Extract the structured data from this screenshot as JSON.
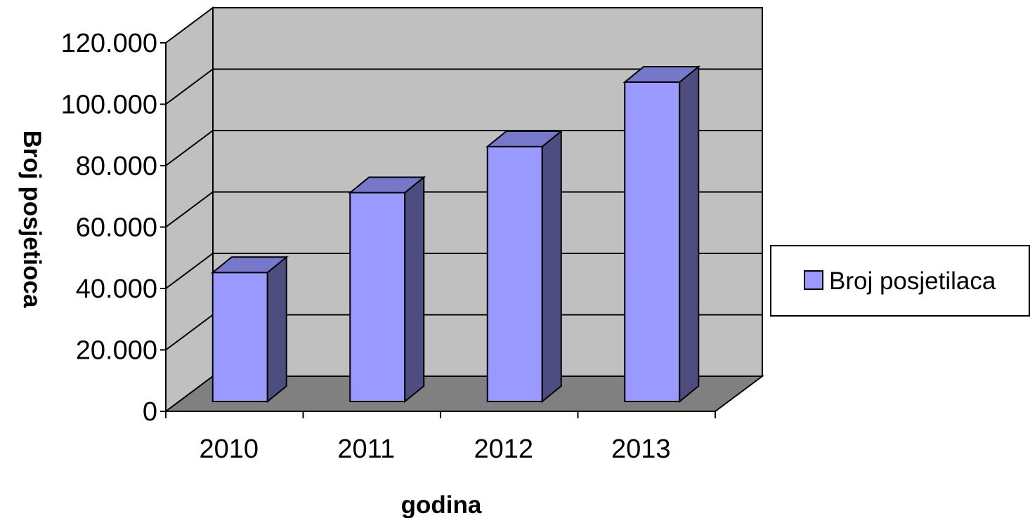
{
  "chart_data": {
    "type": "bar",
    "style": "3d-column",
    "title": "",
    "xlabel": "godina",
    "ylabel": "Broj posjetioca",
    "categories": [
      "2010",
      "2011",
      "2012",
      "2013"
    ],
    "series": [
      {
        "name": "Broj posjetilaca",
        "values": [
          42000,
          68000,
          83000,
          104000
        ]
      }
    ],
    "ylim": [
      0,
      120000
    ],
    "yticks": [
      0,
      20000,
      40000,
      60000,
      80000,
      100000,
      120000
    ],
    "ytick_labels": [
      "0",
      "20.000",
      "40.000",
      "60.000",
      "80.000",
      "100.000",
      "120.000"
    ],
    "grid": true,
    "legend_position": "right",
    "colors": {
      "bar_front": "#9999ff",
      "bar_top": "#7777cc",
      "bar_side": "#4d4d80",
      "wall": "#c0c0c0",
      "floor": "#808080",
      "gridline": "#000000"
    }
  }
}
